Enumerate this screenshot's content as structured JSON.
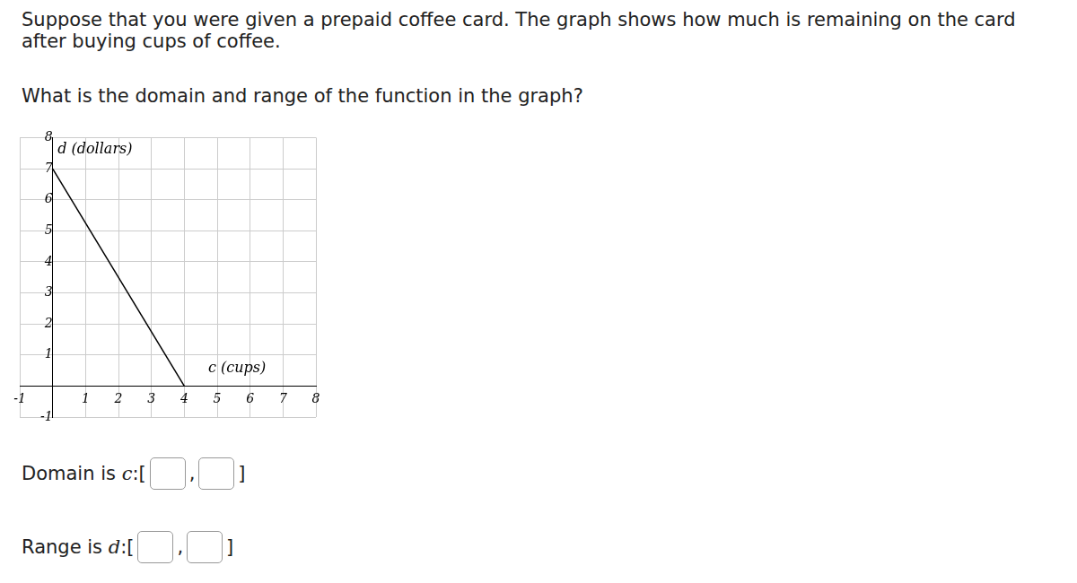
{
  "page": {
    "prompt_lines": [
      "Suppose that you were given a prepaid coffee card. The graph shows how much is remaining on the card",
      "after buying cups of coffee."
    ],
    "question": "What is the domain and range of the function in the graph?",
    "answers": [
      {
        "label": "Domain is ",
        "variable": "c",
        "open": ":[",
        "separator": ",",
        "close": "]"
      },
      {
        "label": "Range is ",
        "variable": "d",
        "open": ":[",
        "separator": ",",
        "close": "]"
      }
    ]
  },
  "chart_data": {
    "type": "line",
    "annotations": [
      "d (dollars)",
      "c (cups)"
    ],
    "x": [
      0,
      4
    ],
    "values": [
      7,
      0
    ],
    "color": "#000000",
    "xlim": [
      -1,
      8
    ],
    "ylim": [
      -1,
      8
    ],
    "xticks": [
      -1,
      1,
      2,
      3,
      4,
      5,
      6,
      7,
      8
    ],
    "yticks": [
      -1,
      1,
      2,
      3,
      4,
      5,
      6,
      7,
      8
    ],
    "grid": true
  }
}
